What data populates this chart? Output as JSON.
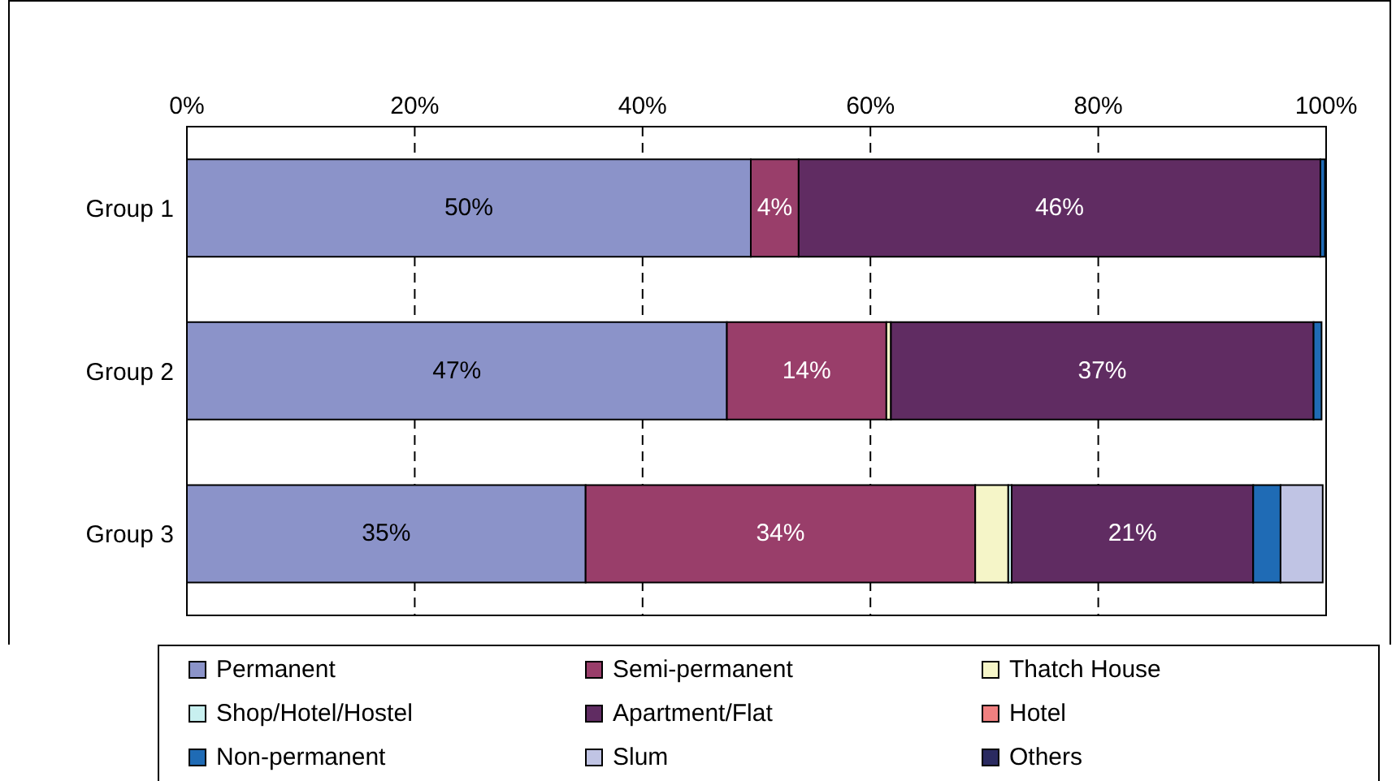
{
  "chart_data": {
    "type": "bar",
    "orientation": "horizontal",
    "stacked": true,
    "categories": [
      "Group 1",
      "Group 2",
      "Group 3"
    ],
    "xlim": [
      0,
      100
    ],
    "xticks": [
      {
        "value": 0,
        "label": "0%"
      },
      {
        "value": 20,
        "label": "20%"
      },
      {
        "value": 40,
        "label": "40%"
      },
      {
        "value": 60,
        "label": "60%"
      },
      {
        "value": 80,
        "label": "80%"
      },
      {
        "value": 100,
        "label": "100%"
      }
    ],
    "grid": "x",
    "legend": "bottom",
    "series": [
      {
        "name": "Permanent",
        "color": "#8b93c9",
        "values": [
          49.5,
          47.4,
          35
        ],
        "value_labels": [
          "50%",
          "47%",
          "35%"
        ]
      },
      {
        "name": "Semi-permanent",
        "color": "#993e6a",
        "values": [
          4.2,
          14,
          34.2
        ],
        "value_labels": [
          "4%",
          "14%",
          "34%"
        ]
      },
      {
        "name": "Thatch House",
        "color": "#f5f5c8",
        "values": [
          0,
          0.4,
          2.9
        ],
        "value_labels": [
          null,
          null,
          null
        ]
      },
      {
        "name": "Shop/Hotel/Hostel",
        "color": "#c8f0f0",
        "values": [
          0,
          null,
          0.3
        ],
        "value_labels": [
          null,
          null,
          null
        ]
      },
      {
        "name": "Apartment/Flat",
        "color": "#602c62",
        "values": [
          45.8,
          37.1,
          21.2
        ],
        "value_labels": [
          "46%",
          "37%",
          "21%"
        ]
      },
      {
        "name": "Hotel",
        "color": "#f08080",
        "values": [
          0,
          0,
          0
        ],
        "value_labels": [
          null,
          null,
          null
        ]
      },
      {
        "name": "Non-permanent",
        "color": "#1f6bb5",
        "values": [
          0.4,
          0.7,
          2.4
        ],
        "value_labels": [
          null,
          null,
          null
        ]
      },
      {
        "name": "Slum",
        "color": "#c0c4e4",
        "values": [
          0,
          0,
          3.7
        ],
        "value_labels": [
          null,
          null,
          null
        ]
      },
      {
        "name": "Others",
        "color": "#2a2a60",
        "values": [
          0,
          0,
          0
        ],
        "value_labels": [
          null,
          null,
          null
        ]
      }
    ]
  }
}
